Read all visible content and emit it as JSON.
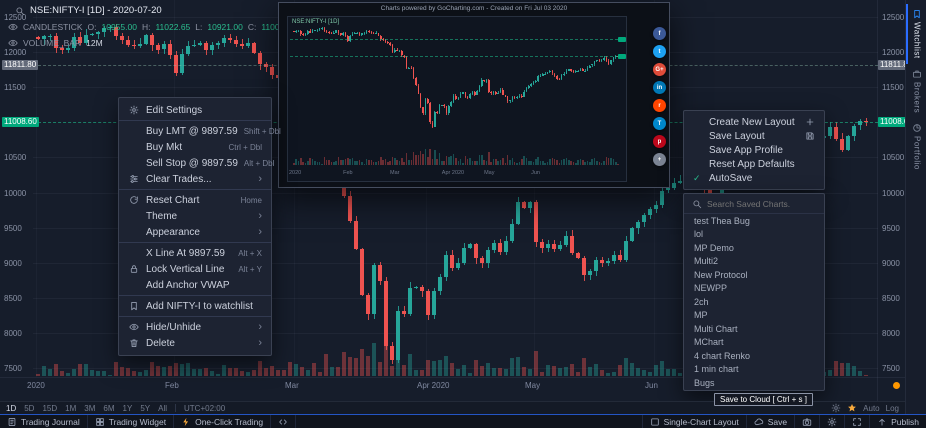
{
  "colors": {
    "up": "#26a69a",
    "down": "#ef5350",
    "accent": "#2196f3",
    "axis_green": "#00a97c",
    "axis_gray": "#636a7a"
  },
  "header": {
    "symbol_line": "NSE:NIFTY-I [1D] - 2020-07-20",
    "series": {
      "name": "CANDLESTICK",
      "o_label": "O:",
      "o": "10955.00",
      "h_label": "H:",
      "h": "11022.65",
      "l_label": "L:",
      "l": "10921.00",
      "c_label": "C:",
      "c": "11008.6"
    },
    "volume": {
      "name": "VOLUME_BAR",
      "value": "12M"
    }
  },
  "chart_data": {
    "type": "candlestick",
    "symbol": "NSE:NIFTY-I",
    "interval": "1D",
    "ylim": [
      7500,
      12500
    ],
    "price_axis_ticks": [
      12500,
      12000,
      11500,
      10500,
      10000,
      9500,
      9000,
      8500,
      8000,
      7500
    ],
    "marked_levels": [
      {
        "value": "11811.80",
        "style": "gray"
      },
      {
        "value": "11008.60",
        "style": "green"
      }
    ],
    "time_ticks": [
      {
        "label": "2020",
        "index": 0
      },
      {
        "label": "Feb",
        "index": 23
      },
      {
        "label": "Mar",
        "index": 43
      },
      {
        "label": "Apr 2020",
        "index": 65
      },
      {
        "label": "May",
        "index": 83
      },
      {
        "label": "Jun",
        "index": 103
      }
    ],
    "closes": [
      12182,
      12226,
      12227,
      12053,
      12033,
      12053,
      12216,
      12129,
      12245,
      12263,
      12282,
      12343,
      12352,
      12224,
      12170,
      12106,
      12080,
      12119,
      12248,
      12101,
      12036,
      12119,
      11962,
      11708,
      11980,
      12089,
      12098,
      12137,
      12032,
      12108,
      12126,
      12202,
      12174,
      12114,
      12080,
      12126,
      11993,
      11829,
      11793,
      11678,
      11633,
      11536,
      11202,
      11303,
      11251,
      11269,
      11036,
      10989,
      10451,
      10458,
      10417,
      9955,
      9590,
      9197,
      8541,
      8263,
      8967,
      8745,
      7811,
      7610,
      8317,
      8264,
      8641,
      8660,
      8598,
      8254,
      8598,
      8792,
      9112,
      8925,
      8993,
      9206,
      9262,
      9062,
      8993,
      9187,
      9282,
      9154,
      9314,
      9553,
      9859,
      9780,
      9860,
      9293,
      9206,
      9270,
      9199,
      9251,
      9383,
      9137,
      9067,
      8823,
      8879,
      9040,
      8993,
      9018,
      9106,
      9039,
      9304,
      9490,
      9580,
      9680,
      9760,
      9826,
      10029,
      10062,
      10142,
      10167,
      10247,
      10304,
      10167,
      10046,
      9914,
      9881,
      10091,
      10167,
      10312,
      10383,
      10305,
      10244,
      10289,
      10312,
      10383,
      10302,
      10312,
      10430,
      10552,
      10607,
      10763,
      10799,
      10768,
      10800,
      10935,
      10768,
      10607,
      10805,
      10955,
      11022,
      11008.6
    ]
  },
  "context_menu": {
    "items": [
      {
        "label": "Edit Settings",
        "icon": "gear"
      },
      {
        "divider": true
      },
      {
        "label": "Buy LMT @ 9897.59",
        "shortcut": "Shift + Dbl"
      },
      {
        "label": "Buy Mkt",
        "shortcut": "Ctrl + Dbl"
      },
      {
        "label": "Sell Stop @ 9897.59",
        "shortcut": "Alt + Dbl"
      },
      {
        "label": "Clear Trades...",
        "icon": "sliders",
        "submenu": true
      },
      {
        "divider": true
      },
      {
        "label": "Reset Chart",
        "icon": "reset",
        "shortcut": "Home"
      },
      {
        "label": "Theme",
        "submenu": true
      },
      {
        "label": "Appearance",
        "submenu": true
      },
      {
        "divider": true
      },
      {
        "label": "X Line At 9897.59",
        "shortcut": "Alt + X"
      },
      {
        "label": "Lock Vertical Line",
        "icon": "lock",
        "shortcut": "Alt + Y"
      },
      {
        "label": "Add Anchor VWAP"
      },
      {
        "divider": true
      },
      {
        "label": "Add NIFTY-I to watchlist",
        "icon": "bookmark"
      },
      {
        "divider": true
      },
      {
        "label": "Hide/Unhide",
        "icon": "eye",
        "submenu": true
      },
      {
        "label": "Delete",
        "icon": "trash",
        "submenu": true
      }
    ]
  },
  "layout_menu": {
    "items": [
      {
        "label": "Create New Layout",
        "trail": "plus"
      },
      {
        "label": "Save Layout",
        "trail": "save"
      },
      {
        "label": "Save App Profile"
      },
      {
        "label": "Reset App Defaults"
      },
      {
        "label": "AutoSave",
        "checked": true
      }
    ]
  },
  "saved_charts": {
    "search_placeholder": "Search Saved Charts.",
    "items": [
      "test Thea Bug",
      "lol",
      "MP Demo",
      "Multi2",
      "New Protocol",
      "NEWPP",
      "2ch",
      "MP",
      "Multi Chart",
      "MChart",
      "4 chart Renko",
      "1 min chart",
      "Bugs"
    ]
  },
  "snapshot_popup": {
    "caption": "Charts powered by GoCharting.com - Created on Fri Jul 03 2020",
    "legend": "NSE:NIFTY-I [1D]",
    "share_buttons": [
      {
        "name": "facebook",
        "color": "#3b5998",
        "glyph": "f"
      },
      {
        "name": "twitter",
        "color": "#1da1f2",
        "glyph": "t"
      },
      {
        "name": "google-plus",
        "color": "#dd4b39",
        "glyph": "G+"
      },
      {
        "name": "linkedin",
        "color": "#0077b5",
        "glyph": "in"
      },
      {
        "name": "reddit",
        "color": "#ff4500",
        "glyph": "r"
      },
      {
        "name": "telegram",
        "color": "#0088cc",
        "glyph": "T"
      },
      {
        "name": "pinterest",
        "color": "#bd081c",
        "glyph": "p"
      },
      {
        "name": "more",
        "color": "#7b8494",
        "glyph": "+"
      }
    ]
  },
  "tooltip": {
    "text": "Save to Cloud [ Ctrl + s ]"
  },
  "timeframe_bar": {
    "buttons": [
      "1D",
      "5D",
      "15D",
      "1M",
      "3M",
      "6M",
      "1Y",
      "5Y",
      "All"
    ],
    "active": "1D",
    "timezone": "UTC+02:00",
    "scale_labels": [
      "Auto",
      "Log"
    ]
  },
  "status_bar": {
    "left": [
      {
        "icon": "journal",
        "label": "Trading Journal"
      },
      {
        "icon": "widget",
        "label": "Trading Widget"
      },
      {
        "icon": "lightning",
        "label": "One-Click Trading"
      },
      {
        "icon": "code",
        "label": ""
      }
    ],
    "right": [
      {
        "icon": "layout",
        "label": "Single-Chart Layout"
      },
      {
        "icon": "cloud",
        "label": "Save"
      },
      {
        "icon": "camera",
        "label": ""
      },
      {
        "icon": "gear",
        "label": ""
      },
      {
        "icon": "expand",
        "label": ""
      },
      {
        "icon": "publish",
        "label": "Publish"
      }
    ]
  },
  "side_tabs": [
    "Watchlist",
    "Brokers",
    "Portfolio"
  ]
}
